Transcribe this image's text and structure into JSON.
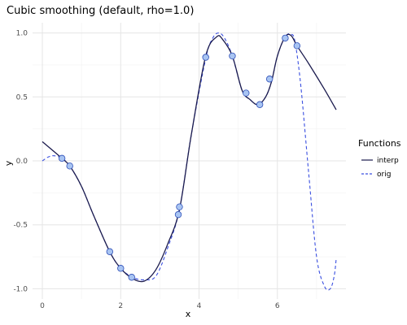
{
  "chart_data": {
    "type": "line",
    "title": "Cubic smoothing (default, rho=1.0)",
    "xlabel": "x",
    "ylabel": "y",
    "xlim": [
      -0.25,
      7.75
    ],
    "ylim": [
      -1.08,
      1.08
    ],
    "x_ticks": [
      0,
      2,
      4,
      6
    ],
    "y_ticks": [
      1.0,
      0.5,
      0.0,
      -0.5,
      -1.0
    ],
    "x_tick_labels": [
      "0",
      "2",
      "4",
      "6"
    ],
    "y_tick_labels": [
      "1.0",
      "0.5",
      "0.0",
      "-0.5",
      "-1.0"
    ],
    "grid": true,
    "legend_title": "Functions",
    "legend_placement": "right",
    "series": [
      {
        "name": "interp",
        "style": "solid",
        "color": "#1a1a4d",
        "x": [
          0,
          0.5,
          0.7,
          1.0,
          1.3,
          1.72,
          2.0,
          2.3,
          2.6,
          2.9,
          3.2,
          3.5,
          3.8,
          4.17,
          4.45,
          4.6,
          4.85,
          5.1,
          5.3,
          5.5,
          5.7,
          5.85,
          6.0,
          6.2,
          6.35,
          6.5,
          6.8,
          7.2,
          7.5
        ],
        "y": [
          0.15,
          0.02,
          -0.04,
          -0.2,
          -0.42,
          -0.71,
          -0.84,
          -0.92,
          -0.94,
          -0.85,
          -0.65,
          -0.38,
          0.2,
          0.82,
          0.97,
          0.95,
          0.82,
          0.55,
          0.48,
          0.44,
          0.5,
          0.62,
          0.82,
          0.97,
          0.98,
          0.9,
          0.76,
          0.56,
          0.4
        ]
      },
      {
        "name": "orig",
        "style": "dashed",
        "color": "#3a4fe0",
        "x": [
          0,
          0.15,
          0.3,
          0.5,
          0.7,
          1.0,
          1.3,
          1.72,
          2.0,
          2.3,
          2.6,
          2.9,
          3.2,
          3.5,
          3.8,
          4.17,
          4.35,
          4.5,
          4.65,
          4.85,
          5.1,
          5.3,
          5.5,
          5.7,
          5.85,
          6.0,
          6.2,
          6.35,
          6.45,
          6.6,
          6.8,
          7.0,
          7.2,
          7.35,
          7.45,
          7.5
        ],
        "y": [
          0.0,
          0.03,
          0.04,
          0.02,
          -0.04,
          -0.2,
          -0.42,
          -0.71,
          -0.84,
          -0.91,
          -0.93,
          -0.9,
          -0.68,
          -0.38,
          0.2,
          0.8,
          0.96,
          1.0,
          0.96,
          0.82,
          0.55,
          0.48,
          0.44,
          0.5,
          0.62,
          0.82,
          0.97,
          0.99,
          0.93,
          0.58,
          -0.1,
          -0.75,
          -0.98,
          -1.0,
          -0.9,
          -0.77
        ]
      }
    ],
    "points": {
      "color": "#a8c4f2",
      "x": [
        0.5,
        0.7,
        1.72,
        2.0,
        2.28,
        3.47,
        3.5,
        4.17,
        4.85,
        5.2,
        5.55,
        5.8,
        6.2,
        6.5
      ],
      "y": [
        0.02,
        -0.04,
        -0.71,
        -0.84,
        -0.91,
        -0.42,
        -0.36,
        0.81,
        0.82,
        0.53,
        0.44,
        0.64,
        0.96,
        0.9
      ]
    }
  }
}
